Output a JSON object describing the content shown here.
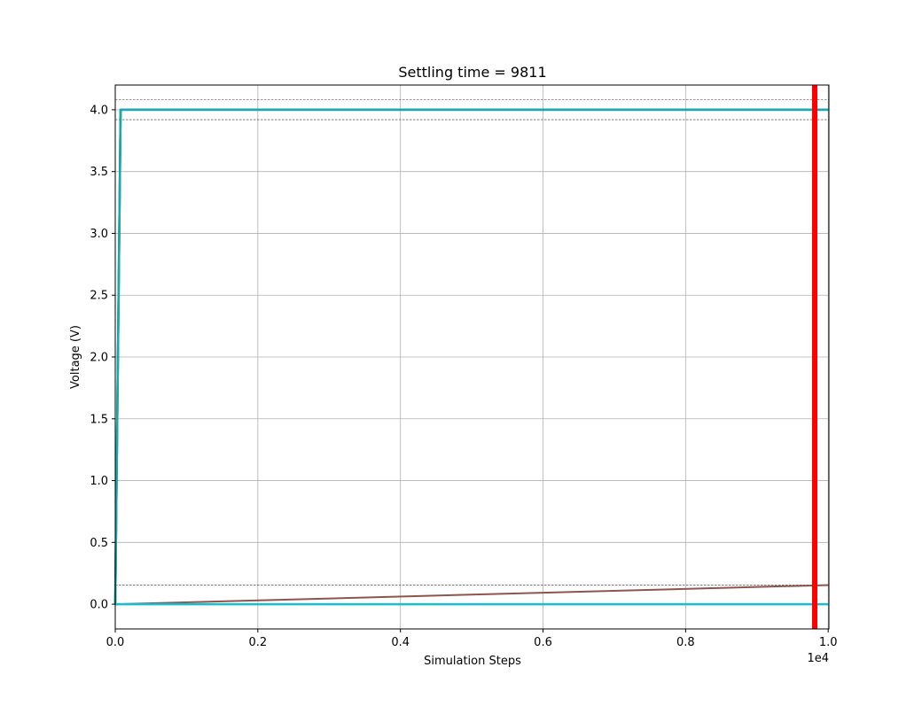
{
  "chart_data": {
    "type": "line",
    "title": "Settling time = 9811",
    "xlabel": "Simulation Steps",
    "ylabel": "Voltage (V)",
    "x_scale_label": "1e4",
    "xlim": [
      0,
      10010
    ],
    "ylim": [
      -0.2,
      4.2
    ],
    "x_ticks": [
      0,
      2000,
      4000,
      6000,
      8000,
      10000
    ],
    "x_tick_labels": [
      "0.0",
      "0.2",
      "0.4",
      "0.6",
      "0.8",
      "1.0"
    ],
    "y_ticks": [
      0.0,
      0.5,
      1.0,
      1.5,
      2.0,
      2.5,
      3.0,
      3.5,
      4.0
    ],
    "y_tick_labels": [
      "0.0",
      "0.5",
      "1.0",
      "1.5",
      "2.0",
      "2.5",
      "3.0",
      "3.5",
      "4.0"
    ],
    "grid": true,
    "series": [
      {
        "color": "#1f77b4",
        "width": 2.5,
        "x": [
          0,
          75,
          10010
        ],
        "y": [
          0.0,
          4.0,
          4.0
        ]
      },
      {
        "color": "#2ca02c",
        "width": 2.5,
        "x": [
          0,
          75
        ],
        "y": [
          0.0,
          4.0
        ]
      },
      {
        "color": "#17a8b0",
        "width": 2.5,
        "x": [
          0,
          75,
          10010
        ],
        "y": [
          0.0,
          4.0,
          4.0
        ]
      },
      {
        "color": "#8c564b",
        "width": 2,
        "x": [
          0,
          10010
        ],
        "y": [
          0.0,
          0.155
        ]
      },
      {
        "color": "#17becf",
        "width": 2.5,
        "x": [
          0,
          10010
        ],
        "y": [
          0.0,
          0.0
        ]
      }
    ],
    "hlines": [
      {
        "y": 4.08,
        "color": "#333333",
        "style": "dashed"
      },
      {
        "y": 3.92,
        "color": "#333333",
        "style": "dashed"
      },
      {
        "y": 0.155,
        "color": "#333333",
        "style": "dashed"
      }
    ],
    "vlines": [
      {
        "x": 9811,
        "color": "#ff0000",
        "width": 6
      }
    ]
  }
}
